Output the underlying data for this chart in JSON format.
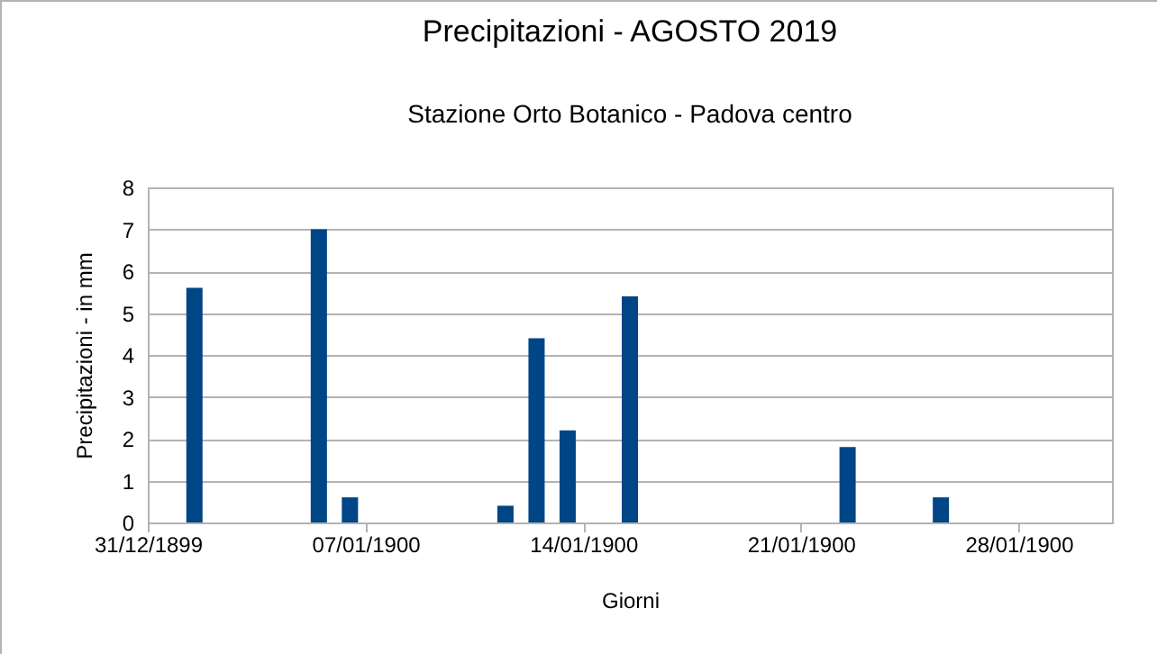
{
  "chart_data": {
    "type": "bar",
    "title": "Precipitazioni - AGOSTO 2019",
    "subtitle": "Stazione Orto Botanico - Padova centro",
    "xlabel": "Giorni",
    "ylabel": "Precipitazioni - in mm",
    "x": [
      "1900-01-01T12:00",
      "1900-01-05T12:00",
      "1900-01-06T12:00",
      "1900-01-11T12:00",
      "1900-01-12T12:00",
      "1900-01-13T12:00",
      "1900-01-15T12:00",
      "1900-01-22T12:00",
      "1900-01-25T12:00"
    ],
    "values": [
      5.6,
      7,
      0.6,
      0.4,
      4.4,
      2.2,
      5.4,
      1.8,
      0.6
    ],
    "color": "#004586",
    "xlim": [
      "1899-12-31",
      "1900-01-31"
    ],
    "xticks": [
      {
        "value": "1899-12-31",
        "label": "31/12/1899"
      },
      {
        "value": "1900-01-07",
        "label": "07/01/1900"
      },
      {
        "value": "1900-01-14",
        "label": "14/01/1900"
      },
      {
        "value": "1900-01-21",
        "label": "21/01/1900"
      },
      {
        "value": "1900-01-28",
        "label": "28/01/1900"
      }
    ],
    "ylim": [
      0,
      8
    ],
    "yticks": [
      0,
      1,
      2,
      3,
      4,
      5,
      6,
      7,
      8
    ],
    "grid": "y"
  }
}
